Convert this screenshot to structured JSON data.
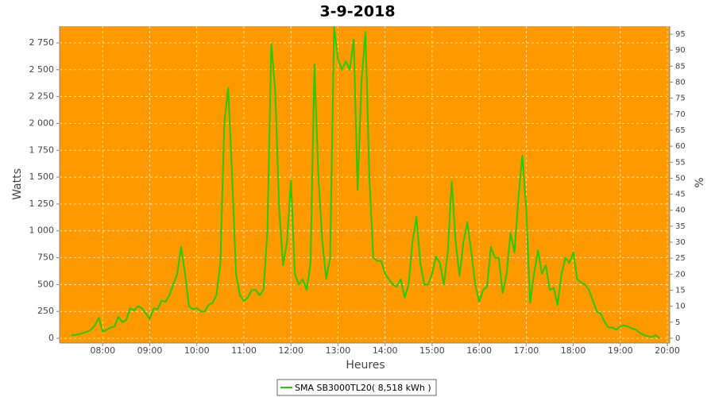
{
  "chart_data": {
    "type": "line",
    "title": "3-9-2018",
    "x_label": "Heures",
    "y_label": "Watts",
    "y2_label": "%",
    "background": "#ff9900",
    "grid": true,
    "xlim": [
      "07:05",
      "20:03"
    ],
    "xticks": [
      "08:00",
      "09:00",
      "10:00",
      "11:00",
      "12:00",
      "13:00",
      "14:00",
      "15:00",
      "16:00",
      "17:00",
      "18:00",
      "19:00",
      "20:00"
    ],
    "ylim": [
      -44,
      2905
    ],
    "yticks": [
      0,
      250,
      500,
      750,
      {
        "value": 1000,
        "label": "1 000"
      },
      {
        "value": 1250,
        "label": "1 250"
      },
      {
        "value": 1500,
        "label": "1 500"
      },
      {
        "value": 1750,
        "label": "1 750"
      },
      {
        "value": 2000,
        "label": "2 000"
      },
      {
        "value": 2250,
        "label": "2 250"
      },
      {
        "value": 2500,
        "label": "2 500"
      },
      {
        "value": 2750,
        "label": "2 750"
      }
    ],
    "y2lim": [
      -1.5,
      97.5
    ],
    "y2ticks": [
      0,
      5,
      10,
      15,
      20,
      25,
      30,
      35,
      40,
      45,
      50,
      55,
      60,
      65,
      70,
      75,
      80,
      85,
      90,
      95
    ],
    "x": [
      "07:20",
      "07:25",
      "07:30",
      "07:35",
      "07:40",
      "07:45",
      "07:50",
      "07:55",
      "08:00",
      "08:05",
      "08:10",
      "08:15",
      "08:20",
      "08:25",
      "08:30",
      "08:35",
      "08:40",
      "08:45",
      "08:50",
      "08:55",
      "09:00",
      "09:05",
      "09:10",
      "09:15",
      "09:20",
      "09:25",
      "09:30",
      "09:35",
      "09:40",
      "09:45",
      "09:50",
      "09:55",
      "10:00",
      "10:05",
      "10:10",
      "10:15",
      "10:20",
      "10:25",
      "10:30",
      "10:35",
      "10:40",
      "10:45",
      "10:50",
      "10:55",
      "11:00",
      "11:05",
      "11:10",
      "11:15",
      "11:20",
      "11:25",
      "11:30",
      "11:35",
      "11:40",
      "11:45",
      "11:50",
      "11:55",
      "12:00",
      "12:05",
      "12:10",
      "12:15",
      "12:20",
      "12:25",
      "12:30",
      "12:35",
      "12:40",
      "12:45",
      "12:50",
      "12:55",
      "13:00",
      "13:05",
      "13:10",
      "13:15",
      "13:20",
      "13:25",
      "13:30",
      "13:35",
      "13:40",
      "13:45",
      "13:50",
      "13:55",
      "14:00",
      "14:05",
      "14:10",
      "14:15",
      "14:20",
      "14:25",
      "14:30",
      "14:35",
      "14:40",
      "14:45",
      "14:50",
      "14:55",
      "15:00",
      "15:05",
      "15:10",
      "15:15",
      "15:20",
      "15:25",
      "15:30",
      "15:35",
      "15:40",
      "15:45",
      "15:50",
      "15:55",
      "16:00",
      "16:05",
      "16:10",
      "16:15",
      "16:20",
      "16:25",
      "16:30",
      "16:35",
      "16:40",
      "16:45",
      "16:50",
      "16:55",
      "17:00",
      "17:05",
      "17:10",
      "17:15",
      "17:20",
      "17:25",
      "17:30",
      "17:35",
      "17:40",
      "17:45",
      "17:50",
      "17:55",
      "18:00",
      "18:05",
      "18:10",
      "18:15",
      "18:20",
      "18:25",
      "18:30",
      "18:35",
      "18:40",
      "18:45",
      "18:50",
      "18:55",
      "19:00",
      "19:05",
      "19:10",
      "19:15",
      "19:20",
      "19:25",
      "19:30",
      "19:35",
      "19:40",
      "19:45",
      "19:50"
    ],
    "series": [
      {
        "name": "SMA SB3000TL20( 8,518 kWh )",
        "color": "#22cc00",
        "values": [
          30,
          30,
          40,
          50,
          60,
          80,
          120,
          190,
          60,
          80,
          100,
          110,
          200,
          150,
          170,
          280,
          260,
          300,
          280,
          230,
          180,
          280,
          270,
          350,
          340,
          400,
          500,
          600,
          850,
          600,
          300,
          270,
          280,
          250,
          250,
          310,
          330,
          400,
          700,
          2000,
          2330,
          1500,
          600,
          400,
          350,
          380,
          450,
          450,
          400,
          450,
          1000,
          2740,
          2300,
          1200,
          680,
          900,
          1470,
          600,
          500,
          550,
          450,
          700,
          2550,
          1500,
          900,
          550,
          750,
          2900,
          2600,
          2500,
          2580,
          2500,
          2780,
          1380,
          2400,
          2850,
          1500,
          750,
          720,
          720,
          600,
          550,
          500,
          480,
          550,
          380,
          500,
          900,
          1130,
          700,
          500,
          500,
          600,
          760,
          700,
          500,
          800,
          1460,
          900,
          580,
          900,
          1080,
          800,
          500,
          340,
          450,
          480,
          850,
          750,
          750,
          420,
          600,
          980,
          800,
          1300,
          1700,
          1200,
          330,
          600,
          820,
          600,
          680,
          450,
          470,
          310,
          600,
          750,
          700,
          800,
          550,
          520,
          500,
          450,
          350,
          250,
          230,
          150,
          100,
          100,
          80,
          110,
          120,
          110,
          90,
          80,
          50,
          30,
          20,
          10,
          30,
          0
        ]
      }
    ]
  }
}
